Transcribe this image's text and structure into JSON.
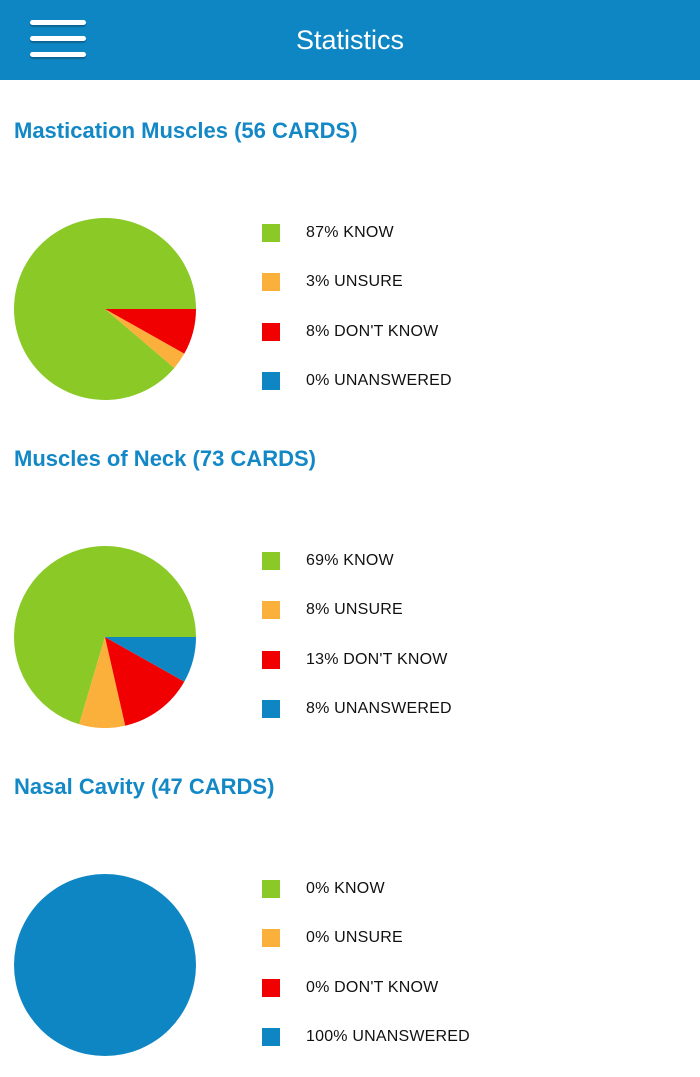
{
  "header": {
    "title": "Statistics",
    "menu_icon": "hamburger-menu-icon",
    "background_color": "#0f86c4"
  },
  "colors": {
    "know": "#8ac926",
    "unsure": "#fbb03b",
    "dont_know": "#f00000",
    "unanswered": "#0f86c4",
    "title": "#1388c6"
  },
  "sections": [
    {
      "title": "Mastication Muscles (56 CARDS)",
      "chart_data": {
        "type": "pie",
        "slices": [
          {
            "key": "know",
            "value": 87
          },
          {
            "key": "unsure",
            "value": 3
          },
          {
            "key": "dont_know",
            "value": 8
          },
          {
            "key": "unanswered",
            "value": 0
          }
        ]
      },
      "legend": [
        {
          "key": "know",
          "label": "87% KNOW"
        },
        {
          "key": "unsure",
          "label": "3% UNSURE"
        },
        {
          "key": "dont_know",
          "label": "8% DON'T KNOW"
        },
        {
          "key": "unanswered",
          "label": "0% UNANSWERED"
        }
      ]
    },
    {
      "title": "Muscles of Neck (73 CARDS)",
      "chart_data": {
        "type": "pie",
        "slices": [
          {
            "key": "know",
            "value": 69
          },
          {
            "key": "unsure",
            "value": 8
          },
          {
            "key": "dont_know",
            "value": 13
          },
          {
            "key": "unanswered",
            "value": 8
          }
        ]
      },
      "legend": [
        {
          "key": "know",
          "label": "69% KNOW"
        },
        {
          "key": "unsure",
          "label": "8% UNSURE"
        },
        {
          "key": "dont_know",
          "label": "13% DON'T KNOW"
        },
        {
          "key": "unanswered",
          "label": "8% UNANSWERED"
        }
      ]
    },
    {
      "title": "Nasal Cavity (47 CARDS)",
      "chart_data": {
        "type": "pie",
        "slices": [
          {
            "key": "know",
            "value": 0
          },
          {
            "key": "unsure",
            "value": 0
          },
          {
            "key": "dont_know",
            "value": 0
          },
          {
            "key": "unanswered",
            "value": 100
          }
        ]
      },
      "legend": [
        {
          "key": "know",
          "label": "0% KNOW"
        },
        {
          "key": "unsure",
          "label": "0% UNSURE"
        },
        {
          "key": "dont_know",
          "label": "0% DON'T KNOW"
        },
        {
          "key": "unanswered",
          "label": "100% UNANSWERED"
        }
      ]
    }
  ]
}
